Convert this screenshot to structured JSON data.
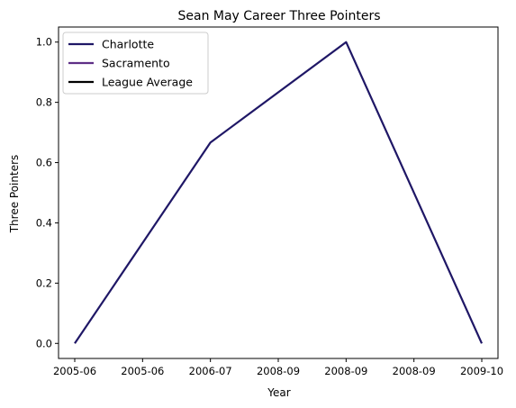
{
  "chart_data": {
    "type": "line",
    "title": "Sean May Career Three Pointers",
    "xlabel": "Year",
    "ylabel": "Three Pointers",
    "x_tick_labels": [
      "2005-06",
      "2005-06",
      "2006-07",
      "2008-09",
      "2008-09",
      "2008-09",
      "2009-10"
    ],
    "y_ticks": [
      0.0,
      0.2,
      0.4,
      0.6,
      0.8,
      1.0
    ],
    "y_tick_labels": [
      "0.0",
      "0.2",
      "0.4",
      "0.6",
      "0.8",
      "1.0"
    ],
    "ylim": [
      -0.05,
      1.05
    ],
    "grid": false,
    "legend_position": "top-left",
    "series": [
      {
        "name": "Charlotte",
        "color": "#1f1766",
        "points": [
          {
            "x": 0,
            "y": 0.0
          },
          {
            "x": 2,
            "y": 0.6667
          },
          {
            "x": 4,
            "y": 1.0
          },
          {
            "x": 6,
            "y": 0.0
          }
        ]
      },
      {
        "name": "Sacramento",
        "color": "#5e2f86",
        "points": []
      },
      {
        "name": "League Average",
        "color": "#000000",
        "points": []
      }
    ]
  }
}
